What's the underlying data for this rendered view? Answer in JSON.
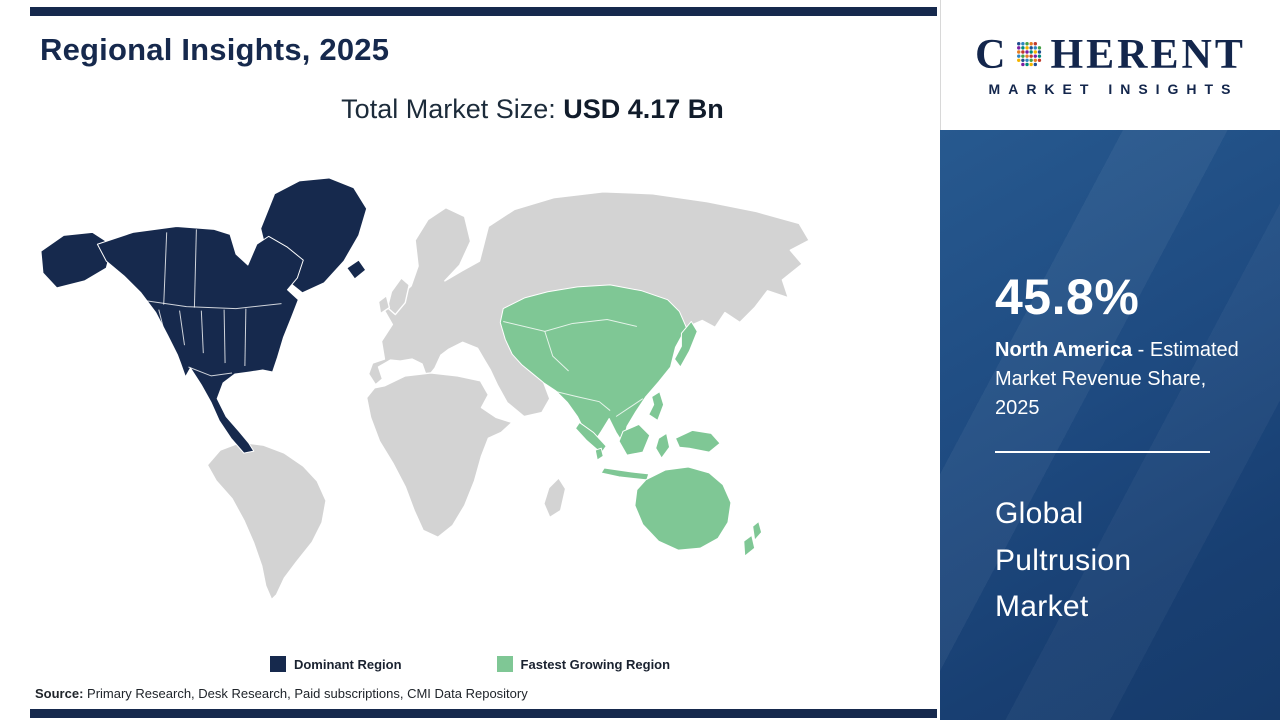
{
  "title": "Regional Insights, 2025",
  "subtitle": {
    "prefix": "Total Market Size: ",
    "value": "USD 4.17 Bn"
  },
  "legend": [
    {
      "label": "Dominant Region",
      "color": "#16294d"
    },
    {
      "label": "Fastest Growing Region",
      "color": "#7fc795"
    }
  ],
  "source": {
    "label": "Source:",
    "text": " Primary Research, Desk Research, Paid subscriptions, CMI Data Repository"
  },
  "sidebar": {
    "brand": {
      "first_letter": "C",
      "rest": "HERENT",
      "tagline": "MARKET INSIGHTS"
    },
    "stat": {
      "value": "45.8%",
      "region": "North America",
      "suffix": " - Estimated Market Revenue Share, 2025"
    },
    "market": "Global Pultrusion Market"
  },
  "map": {
    "colors": {
      "dominant": "#16294d",
      "fastest_growing": "#7fc795",
      "other_land": "#d3d3d3",
      "borders": "#ffffff"
    }
  },
  "chart_data": {
    "type": "choropleth_map",
    "title": "Regional Insights, 2025",
    "total_market_size": "USD 4.17 Bn",
    "legend": [
      "Dominant Region",
      "Fastest Growing Region"
    ],
    "regions": [
      {
        "name": "North America",
        "category": "Dominant Region",
        "estimated_market_revenue_share_2025_pct": 45.8
      },
      {
        "name": "Asia Pacific",
        "category": "Fastest Growing Region"
      }
    ],
    "market": "Global Pultrusion Market"
  }
}
